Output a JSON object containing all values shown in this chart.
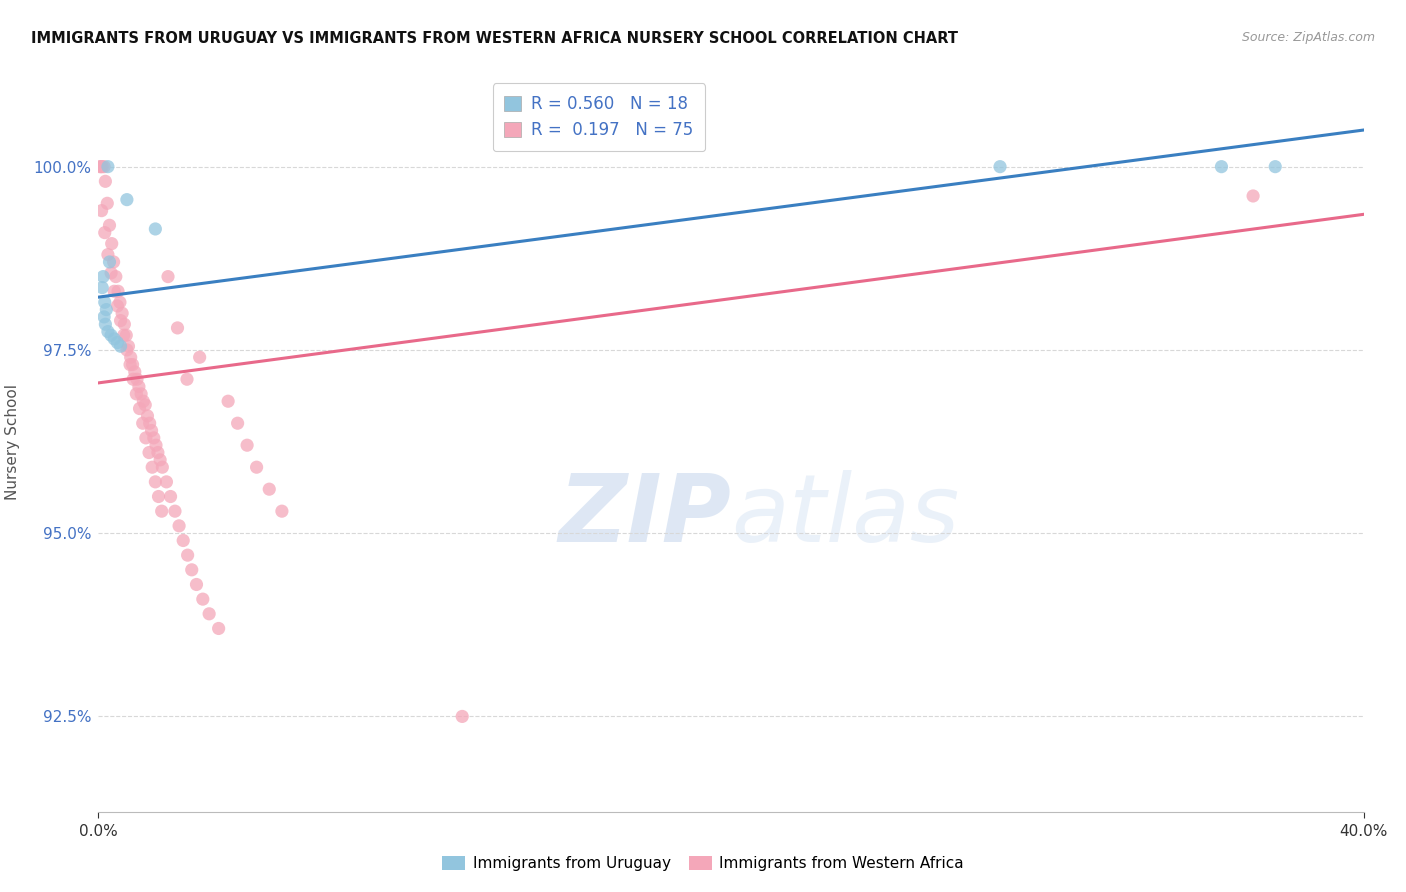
{
  "title": "IMMIGRANTS FROM URUGUAY VS IMMIGRANTS FROM WESTERN AFRICA NURSERY SCHOOL CORRELATION CHART",
  "source": "Source: ZipAtlas.com",
  "ylabel": "Nursery School",
  "ytick_values": [
    92.5,
    95.0,
    97.5,
    100.0
  ],
  "xlim": [
    0.0,
    40.0
  ],
  "ylim": [
    91.2,
    101.3
  ],
  "legend_blue_r": "R = 0.560",
  "legend_blue_n": "N = 18",
  "legend_pink_r": "R =  0.197",
  "legend_pink_n": "N = 75",
  "blue_color": "#92c5de",
  "pink_color": "#f4a7b9",
  "blue_line_color": "#3a7fc1",
  "pink_line_color": "#e8698a",
  "background_color": "#ffffff",
  "blue_line_x0": 0.0,
  "blue_line_y0": 98.22,
  "blue_line_x1": 40.0,
  "blue_line_y1": 100.5,
  "pink_line_x0": 0.0,
  "pink_line_y0": 97.05,
  "pink_line_x1": 40.0,
  "pink_line_y1": 99.35,
  "uru_x": [
    0.3,
    0.9,
    1.8,
    0.35,
    0.15,
    0.12,
    0.2,
    0.25,
    0.18,
    0.22,
    0.3,
    0.4,
    0.5,
    0.6,
    0.7,
    28.5,
    35.5,
    37.2
  ],
  "uru_y": [
    100.0,
    99.55,
    99.15,
    98.7,
    98.5,
    98.35,
    98.15,
    98.05,
    97.95,
    97.85,
    97.75,
    97.7,
    97.65,
    97.6,
    97.55,
    100.0,
    100.0,
    100.0
  ],
  "wa_x": [
    0.05,
    0.08,
    0.12,
    0.18,
    0.22,
    0.28,
    0.35,
    0.42,
    0.48,
    0.55,
    0.62,
    0.68,
    0.75,
    0.82,
    0.88,
    0.95,
    1.02,
    1.08,
    1.15,
    1.22,
    1.28,
    1.35,
    1.42,
    1.48,
    1.55,
    1.62,
    1.68,
    1.75,
    1.82,
    1.88,
    1.95,
    2.02,
    2.15,
    2.28,
    2.42,
    2.55,
    2.68,
    2.82,
    2.95,
    3.1,
    3.3,
    3.5,
    3.8,
    4.1,
    4.4,
    4.7,
    5.0,
    5.4,
    5.8,
    0.1,
    0.2,
    0.3,
    0.4,
    0.5,
    0.6,
    0.7,
    0.8,
    0.9,
    1.0,
    1.1,
    1.2,
    1.3,
    1.4,
    1.5,
    1.6,
    1.7,
    1.8,
    1.9,
    2.0,
    2.2,
    2.5,
    2.8,
    3.2,
    11.5,
    36.5
  ],
  "wa_y": [
    100.0,
    100.0,
    100.0,
    100.0,
    99.8,
    99.5,
    99.2,
    98.95,
    98.7,
    98.5,
    98.3,
    98.15,
    98.0,
    97.85,
    97.7,
    97.55,
    97.4,
    97.3,
    97.2,
    97.1,
    97.0,
    96.9,
    96.8,
    96.75,
    96.6,
    96.5,
    96.4,
    96.3,
    96.2,
    96.1,
    96.0,
    95.9,
    95.7,
    95.5,
    95.3,
    95.1,
    94.9,
    94.7,
    94.5,
    94.3,
    94.1,
    93.9,
    93.7,
    96.8,
    96.5,
    96.2,
    95.9,
    95.6,
    95.3,
    99.4,
    99.1,
    98.8,
    98.55,
    98.3,
    98.1,
    97.9,
    97.7,
    97.5,
    97.3,
    97.1,
    96.9,
    96.7,
    96.5,
    96.3,
    96.1,
    95.9,
    95.7,
    95.5,
    95.3,
    98.5,
    97.8,
    97.1,
    97.4,
    92.5,
    99.6
  ]
}
